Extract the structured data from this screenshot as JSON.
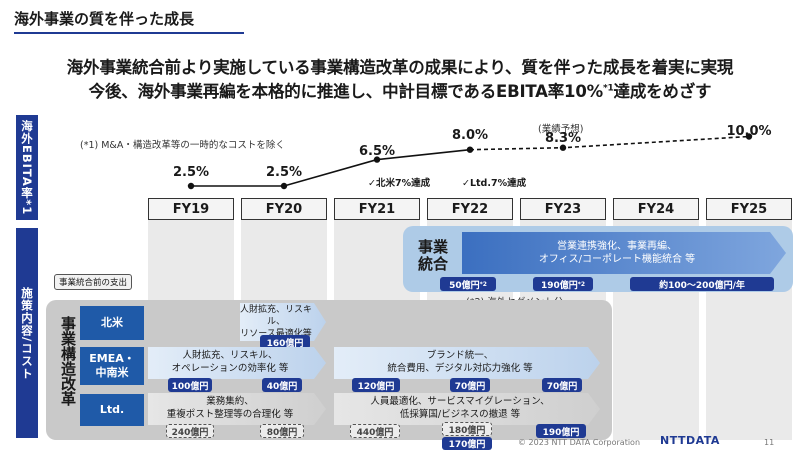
{
  "page": {
    "title": "海外事業の質を伴った成長",
    "headline1": "海外事業統合前より実施している事業構造改革の成果により、質を伴った成長を着実に実現",
    "headline2_main": "今後、海外事業再編を本格的に推進し、中計目標であるEBITA率10%",
    "headline2_sup": "*1",
    "headline2_tail": "達成をめざす"
  },
  "sidebar": {
    "ebita_label": "海外EBITA率*1",
    "measures_label": "施策内容/コスト"
  },
  "ebita": {
    "note": "(*1) M&A・構造改革等の一時的なコストを除く",
    "forecast_label": "(業績予想)",
    "annotation_na": "✓北米7%達成",
    "annotation_ltd": "✓Ltd.7%達成",
    "values": [
      "2.5%",
      "2.5%",
      "6.5%",
      "8.0%",
      "8.3%",
      "",
      "10.0%"
    ],
    "numeric": [
      2.5,
      2.5,
      6.5,
      8.0,
      8.3,
      null,
      10.0
    ]
  },
  "fiscal_years": [
    "FY19",
    "FY20",
    "FY21",
    "FY22",
    "FY23",
    "FY24",
    "FY25"
  ],
  "integration": {
    "label": "事業\n統合",
    "arrow_text": "営業連携強化、事業再編、\nオフィス/コーポレート機能統合 等",
    "cost_fy22": "50億円",
    "cost_fy22_sup": "*2",
    "cost_fy23": "190億円",
    "cost_fy23_sup": "*2",
    "cost_fy24_25": "約100～200億円/年",
    "note": "(*2) 海外セグメント分"
  },
  "restructuring": {
    "label": "事業構造改革",
    "pre_tag": "事業統合前の支出",
    "rows": {
      "na": {
        "label": "北米",
        "arrow_text": "人財拡充、リスキル、\nリソース最適化等",
        "cost": "160億円"
      },
      "emea": {
        "label": "EMEA・\n中南米",
        "arrow1_text": "人財拡充、リスキル、\nオペレーションの効率化 等",
        "cost1": "100億円",
        "cost2": "40億円",
        "arrow2_text": "ブランド統一、\n統合費用、デジタル対応力強化 等",
        "cost3": "120億円",
        "cost4": "70億円",
        "cost5": "70億円"
      },
      "ltd": {
        "label": "Ltd.",
        "arrow1_text": "業務集約、\n重複ポスト整理等の合理化 等",
        "cost1": "240億円",
        "cost2": "80億円",
        "arrow2_text": "人員最適化、サービスマイグレーション、\n低採算国/ビジネスの撤退 等",
        "cost3": "440億円",
        "cost4": "180億円",
        "cost5": "190億円",
        "cost6": "170億円"
      }
    }
  },
  "footer": {
    "copyright": "© 2023 NTT DATA Corporation",
    "logo": "NTTDATA",
    "page_number": "11"
  }
}
